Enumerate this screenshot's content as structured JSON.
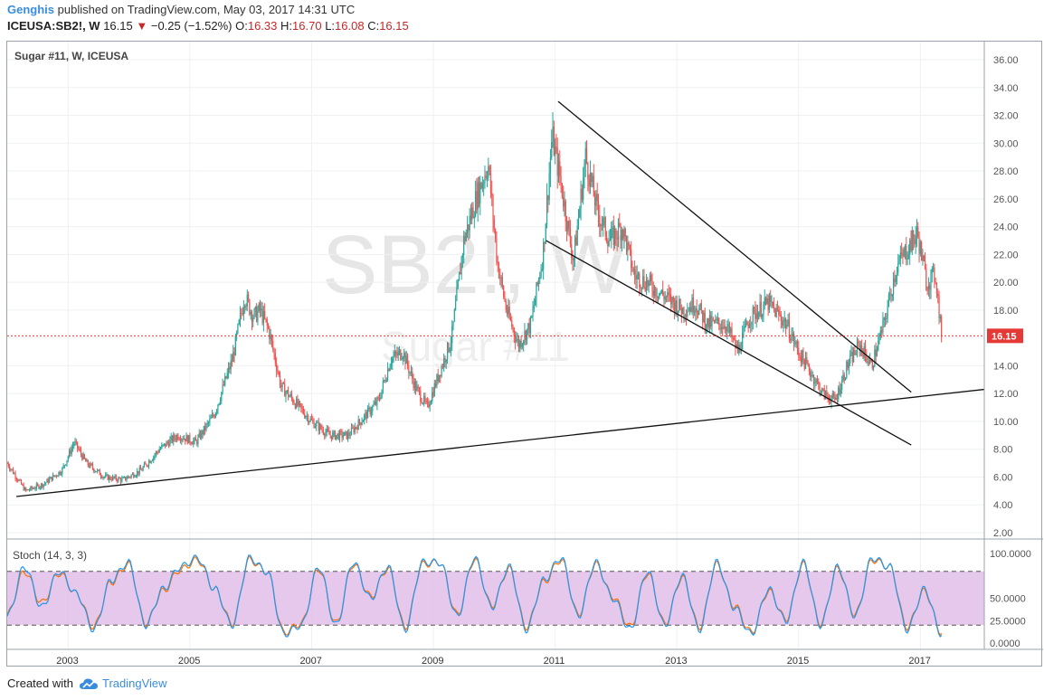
{
  "header": {
    "author": "Genghis",
    "published": "published on TradingView.com, May 03, 2017 14:31 UTC",
    "symbol": "ICEUSA:SB2!, W",
    "last": "16.15",
    "change": "−0.25 (−1.52%)",
    "open_label": "O:",
    "open": "16.33",
    "high_label": "H:",
    "high": "16.70",
    "low_label": "L:",
    "low": "16.08",
    "close_label": "C:",
    "close": "16.15"
  },
  "chart": {
    "legend": "Sugar #11, W, ICEUSA",
    "watermark_symbol": "SB2!, W",
    "watermark_name": "Sugar #11",
    "last_price_label": "16.15",
    "stoch_legend": "Stoch (14, 3, 3)"
  },
  "footer": {
    "created_with": "Created with",
    "brand": "TradingView"
  },
  "colors": {
    "up": "#26a69a",
    "down": "#ef5350",
    "stoch_k": "#2196f3",
    "stoch_d": "#ff6d00",
    "stoch_band": "#e1bee7",
    "price_line": "#e53935"
  },
  "chart_data": [
    {
      "type": "line",
      "title": "Sugar #11, W, ICEUSA",
      "ylim": [
        2,
        37
      ],
      "yticks": [
        "2.00",
        "4.00",
        "6.00",
        "8.00",
        "10.00",
        "12.00",
        "14.00",
        "16.00",
        "18.00",
        "20.00",
        "22.00",
        "24.00",
        "26.00",
        "28.00",
        "30.00",
        "32.00",
        "34.00",
        "36.00"
      ],
      "xlim": [
        2002,
        2018.05
      ],
      "xticks": [
        "2003",
        "2005",
        "2007",
        "2009",
        "2011",
        "2013",
        "2015",
        "2017"
      ],
      "last_price": 16.15,
      "series": [
        {
          "x": [
            2002.0,
            2002.3,
            2002.6,
            2002.9,
            2003.1,
            2003.3,
            2003.6,
            2003.9,
            2004.2,
            2004.5,
            2004.8,
            2005.1,
            2005.4,
            2005.7,
            2005.9,
            2006.05,
            2006.15,
            2006.3,
            2006.5,
            2006.8,
            2007.0,
            2007.3,
            2007.6,
            2007.8,
            2008.1,
            2008.3,
            2008.5,
            2008.7,
            2008.9,
            2009.1,
            2009.3,
            2009.5,
            2009.7,
            2009.9,
            2010.05,
            2010.2,
            2010.4,
            2010.6,
            2010.8,
            2010.95,
            2011.1,
            2011.3,
            2011.5,
            2011.7,
            2011.9,
            2012.1,
            2012.3,
            2012.5,
            2012.8,
            2013.1,
            2013.3,
            2013.5,
            2013.8,
            2014.0,
            2014.2,
            2014.5,
            2014.8,
            2015.0,
            2015.2,
            2015.4,
            2015.6,
            2015.8,
            2016.0,
            2016.2,
            2016.4,
            2016.6,
            2016.8,
            2016.95,
            2017.1,
            2017.25,
            2017.35
          ],
          "y": [
            7.0,
            5.0,
            5.5,
            6.5,
            8.5,
            7.0,
            6.0,
            5.8,
            6.5,
            8.0,
            9.0,
            8.5,
            10.5,
            14.5,
            19.0,
            17.5,
            18.0,
            16.5,
            12.5,
            11.0,
            10.0,
            9.0,
            9.0,
            10.0,
            11.5,
            14.5,
            15.0,
            12.5,
            11.0,
            13.5,
            16.0,
            23.0,
            26.0,
            28.5,
            21.5,
            18.0,
            15.5,
            17.0,
            22.0,
            30.5,
            27.0,
            21.5,
            29.0,
            25.0,
            23.0,
            24.0,
            20.5,
            20.0,
            19.0,
            18.0,
            18.5,
            17.0,
            17.0,
            15.0,
            17.5,
            18.5,
            17.0,
            15.0,
            13.5,
            12.0,
            11.5,
            14.0,
            15.5,
            14.0,
            17.0,
            21.0,
            22.5,
            23.5,
            20.0,
            20.5,
            16.15
          ]
        }
      ],
      "annotations": [
        {
          "label": "long-term support",
          "x1": 2002.15,
          "y1": 4.6,
          "x2": 2018.05,
          "y2": 12.3
        },
        {
          "label": "upper downtrend",
          "x1": 2011.05,
          "y1": 33.0,
          "x2": 2016.85,
          "y2": 12.1
        },
        {
          "label": "lower downtrend",
          "x1": 2010.85,
          "y1": 23.0,
          "x2": 2016.85,
          "y2": 8.3
        }
      ]
    },
    {
      "type": "line",
      "title": "Stoch (14, 3, 3)",
      "ylim": [
        0,
        100
      ],
      "yticks": [
        "0.0000",
        "25.0000",
        "50.0000",
        "100.0000"
      ],
      "bands": [
        20,
        80
      ],
      "series": [
        {
          "name": "%K",
          "values": [
            30,
            85,
            40,
            80,
            55,
            15,
            70,
            90,
            20,
            60,
            85,
            95,
            60,
            20,
            95,
            80,
            10,
            20,
            85,
            20,
            90,
            50,
            85,
            15,
            90,
            90,
            30,
            95,
            40,
            85,
            15,
            70,
            95,
            30,
            90,
            50,
            15,
            80,
            20,
            75,
            15,
            90,
            40,
            10,
            60,
            25,
            90,
            20,
            85,
            30,
            95,
            85,
            15,
            60,
            10
          ]
        },
        {
          "name": "%D",
          "values": [
            32,
            80,
            45,
            78,
            55,
            18,
            68,
            88,
            22,
            58,
            82,
            93,
            60,
            22,
            93,
            80,
            12,
            22,
            83,
            22,
            88,
            52,
            83,
            18,
            88,
            90,
            32,
            93,
            42,
            83,
            18,
            68,
            93,
            32,
            88,
            52,
            18,
            78,
            22,
            73,
            18,
            88,
            42,
            12,
            58,
            27,
            88,
            22,
            83,
            32,
            93,
            85,
            18,
            58,
            12
          ]
        }
      ]
    }
  ]
}
